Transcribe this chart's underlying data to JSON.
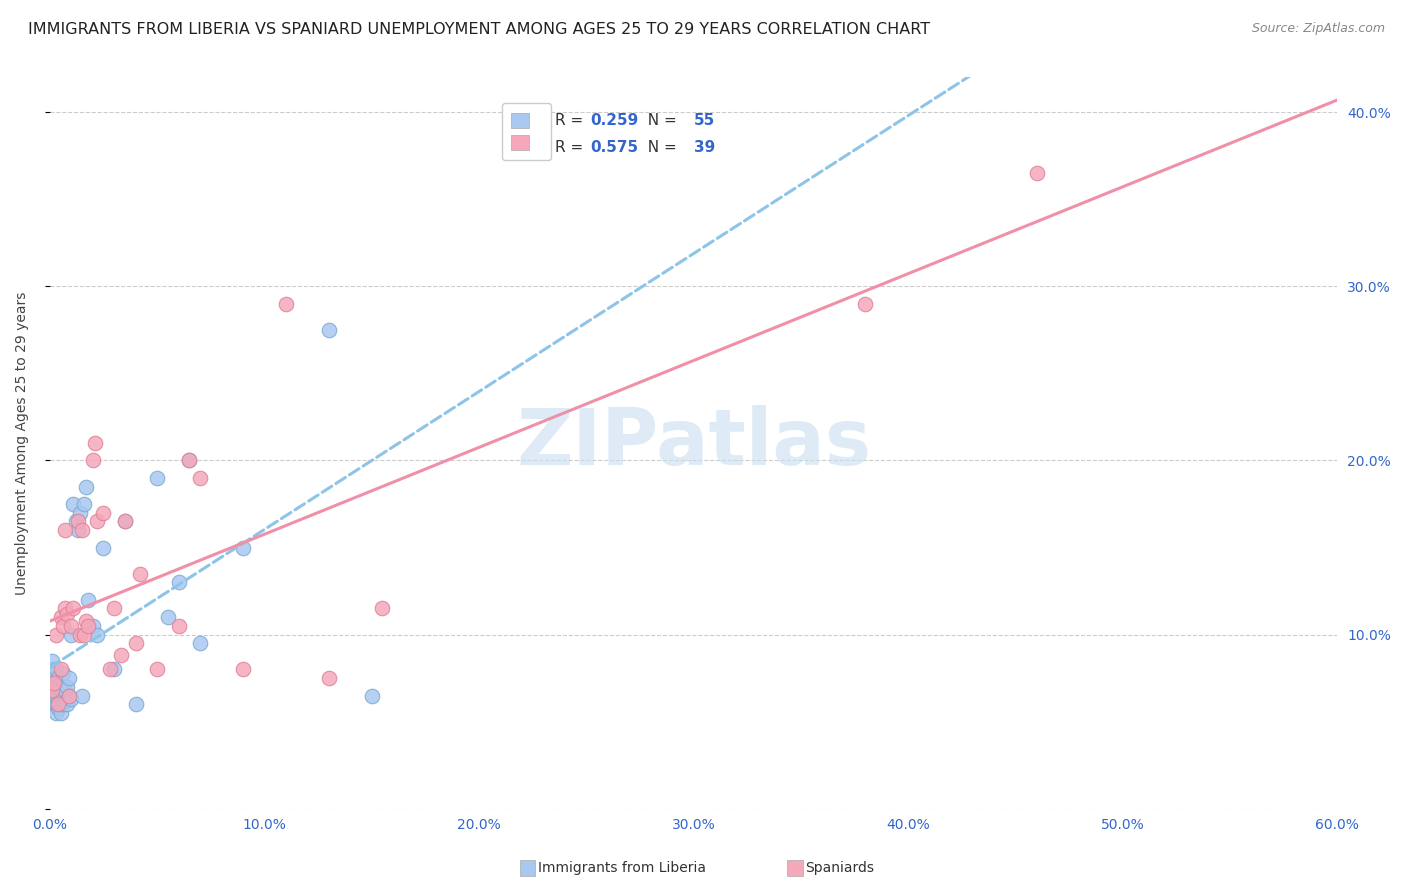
{
  "title": "IMMIGRANTS FROM LIBERIA VS SPANIARD UNEMPLOYMENT AMONG AGES 25 TO 29 YEARS CORRELATION CHART",
  "source": "Source: ZipAtlas.com",
  "ylabel": "Unemployment Among Ages 25 to 29 years",
  "xlim": [
    0,
    0.6
  ],
  "ylim": [
    0,
    0.42
  ],
  "xticks": [
    0.0,
    0.1,
    0.2,
    0.3,
    0.4,
    0.5,
    0.6
  ],
  "yticks": [
    0.0,
    0.1,
    0.2,
    0.3,
    0.4
  ],
  "xtick_labels": [
    "0.0%",
    "10.0%",
    "20.0%",
    "30.0%",
    "40.0%",
    "50.0%",
    "60.0%"
  ],
  "ytick_labels": [
    "",
    "10.0%",
    "20.0%",
    "30.0%",
    "40.0%"
  ],
  "legend1_r": "0.259",
  "legend1_n": "55",
  "legend2_r": "0.575",
  "legend2_n": "39",
  "legend_color1": "#a8c8f0",
  "legend_color2": "#f4a8ba",
  "scatter_blue_x": [
    0.001,
    0.001,
    0.001,
    0.002,
    0.002,
    0.002,
    0.002,
    0.003,
    0.003,
    0.003,
    0.003,
    0.003,
    0.004,
    0.004,
    0.004,
    0.004,
    0.004,
    0.005,
    0.005,
    0.005,
    0.005,
    0.005,
    0.006,
    0.006,
    0.006,
    0.007,
    0.007,
    0.008,
    0.008,
    0.009,
    0.009,
    0.01,
    0.01,
    0.011,
    0.012,
    0.013,
    0.014,
    0.015,
    0.016,
    0.017,
    0.018,
    0.02,
    0.022,
    0.025,
    0.03,
    0.035,
    0.04,
    0.05,
    0.055,
    0.06,
    0.065,
    0.07,
    0.09,
    0.13,
    0.15
  ],
  "scatter_blue_y": [
    0.075,
    0.08,
    0.085,
    0.06,
    0.065,
    0.07,
    0.075,
    0.055,
    0.06,
    0.065,
    0.07,
    0.08,
    0.058,
    0.06,
    0.065,
    0.07,
    0.075,
    0.055,
    0.06,
    0.065,
    0.068,
    0.072,
    0.06,
    0.065,
    0.078,
    0.062,
    0.068,
    0.06,
    0.07,
    0.065,
    0.075,
    0.063,
    0.1,
    0.175,
    0.165,
    0.16,
    0.17,
    0.065,
    0.175,
    0.185,
    0.12,
    0.105,
    0.1,
    0.15,
    0.08,
    0.165,
    0.06,
    0.19,
    0.11,
    0.13,
    0.2,
    0.095,
    0.15,
    0.275,
    0.065
  ],
  "scatter_pink_x": [
    0.001,
    0.002,
    0.003,
    0.004,
    0.005,
    0.005,
    0.006,
    0.007,
    0.007,
    0.008,
    0.009,
    0.01,
    0.011,
    0.013,
    0.014,
    0.015,
    0.016,
    0.017,
    0.018,
    0.02,
    0.021,
    0.022,
    0.025,
    0.028,
    0.03,
    0.033,
    0.035,
    0.04,
    0.042,
    0.05,
    0.06,
    0.065,
    0.07,
    0.09,
    0.11,
    0.13,
    0.155,
    0.38,
    0.46
  ],
  "scatter_pink_y": [
    0.068,
    0.072,
    0.1,
    0.06,
    0.08,
    0.11,
    0.105,
    0.115,
    0.16,
    0.112,
    0.065,
    0.105,
    0.115,
    0.165,
    0.1,
    0.16,
    0.1,
    0.108,
    0.105,
    0.2,
    0.21,
    0.165,
    0.17,
    0.08,
    0.115,
    0.088,
    0.165,
    0.095,
    0.135,
    0.08,
    0.105,
    0.2,
    0.19,
    0.08,
    0.29,
    0.075,
    0.115,
    0.29,
    0.365
  ],
  "line_blue_color": "#8ec4e8",
  "line_pink_color": "#f090a8",
  "dot_blue_color": "#a8c8f0",
  "dot_pink_color": "#f4a8ba",
  "dot_blue_edge": "#7aaad0",
  "dot_pink_edge": "#e08098",
  "background_color": "#ffffff",
  "grid_color": "#cccccc",
  "title_fontsize": 11.5,
  "axis_fontsize": 10,
  "tick_fontsize": 10,
  "watermark": "ZIPatlas",
  "watermark_color": "#c8dff0",
  "legend_text_color": "#333333",
  "legend_val_color": "#3366cc",
  "tick_label_color": "#3366cc"
}
